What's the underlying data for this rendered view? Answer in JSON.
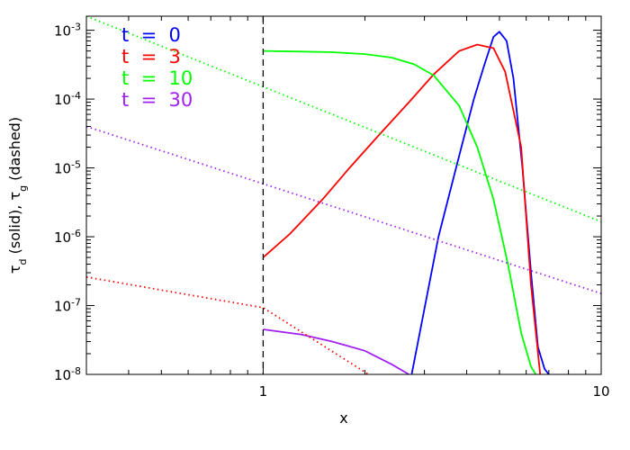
{
  "chart_data": {
    "type": "line",
    "title": "",
    "xlabel": "x",
    "ylabel": "τ_d (solid), τ_g (dashed)",
    "ylabel_parts": {
      "tau": "τ",
      "sub_d": "d",
      "solid": " (solid), ",
      "sub_g": "g",
      "dashed": " (dashed)"
    },
    "xscale": "log",
    "yscale": "log",
    "xlim": [
      0.3,
      10
    ],
    "ylim": [
      1e-08,
      0.0016
    ],
    "xticks": [
      {
        "value": 1,
        "label": "1"
      },
      {
        "value": 10,
        "label": "10"
      }
    ],
    "yticks": [
      {
        "value": 1e-08,
        "mant": "10",
        "exp": "-8"
      },
      {
        "value": 1e-07,
        "mant": "10",
        "exp": "-7"
      },
      {
        "value": 1e-06,
        "mant": "10",
        "exp": "-6"
      },
      {
        "value": 1e-05,
        "mant": "10",
        "exp": "-5"
      },
      {
        "value": 0.0001,
        "mant": "10",
        "exp": "-4"
      },
      {
        "value": 0.001,
        "mant": "10",
        "exp": "-3"
      }
    ],
    "vline": {
      "x": 1,
      "style": "dashed",
      "color": "#000000"
    },
    "legend": {
      "placement": "top-left",
      "entries": [
        {
          "label": "t  =  0",
          "color": "#0000ff"
        },
        {
          "label": "t  =  3",
          "color": "#ff0000"
        },
        {
          "label": "t  =  10",
          "color": "#00ff00"
        },
        {
          "label": "t  =  30",
          "color": "#a020f0"
        }
      ]
    },
    "series": [
      {
        "t": 0,
        "kind": "solid",
        "color": "#0000ff",
        "x": [
          2.75,
          3.3,
          3.8,
          4.2,
          4.5,
          4.8,
          5.0,
          5.25,
          5.5,
          5.85,
          6.2,
          6.5,
          6.8,
          7.0
        ],
        "y": [
          1e-08,
          1e-06,
          1.5e-05,
          0.0001,
          0.0003,
          0.0008,
          0.00095,
          0.0007,
          0.0002,
          1e-05,
          3e-07,
          2.5e-08,
          1.2e-08,
          1e-08
        ]
      },
      {
        "t": 3,
        "kind": "solid",
        "color": "#ff0000",
        "x": [
          1,
          1.2,
          1.5,
          1.8,
          2.2,
          2.7,
          3.2,
          3.8,
          4.3,
          4.8,
          5.2,
          5.8,
          6.2,
          6.6
        ],
        "y": [
          5e-07,
          1.1e-06,
          3.5e-06,
          1e-05,
          3e-05,
          9e-05,
          0.00023,
          0.0005,
          0.00062,
          0.00055,
          0.00025,
          2e-05,
          2e-07,
          1e-08
        ]
      },
      {
        "t": 10,
        "kind": "solid",
        "color": "#00ff00",
        "x": [
          1,
          1.3,
          1.6,
          2.0,
          2.4,
          2.8,
          3.2,
          3.8,
          4.3,
          4.8,
          5.3,
          5.8,
          6.2,
          6.4
        ],
        "y": [
          0.0005,
          0.00049,
          0.00048,
          0.00045,
          0.0004,
          0.00032,
          0.00022,
          8e-05,
          2e-05,
          3.5e-06,
          4e-07,
          4e-08,
          1.3e-08,
          1e-08
        ]
      },
      {
        "t": 30,
        "kind": "solid",
        "color": "#a020f0",
        "x": [
          1,
          1.3,
          1.6,
          2.0,
          2.4,
          2.7
        ],
        "y": [
          4.5e-08,
          3.8e-08,
          3e-08,
          2.2e-08,
          1.4e-08,
          1e-08
        ]
      },
      {
        "t": 0,
        "kind": "dotted",
        "color": "#ff0000",
        "x": [
          0.3,
          1,
          2.05
        ],
        "y": [
          2.6e-07,
          9.3e-08,
          1e-08
        ]
      },
      {
        "t": 10,
        "kind": "dotted",
        "color": "#00ff00",
        "x": [
          0.3,
          10
        ],
        "y": [
          0.0016,
          1.65e-06
        ]
      },
      {
        "t": 30,
        "kind": "dotted",
        "color": "#a020f0",
        "x": [
          0.3,
          10
        ],
        "y": [
          4e-05,
          1.5e-07
        ]
      }
    ]
  }
}
